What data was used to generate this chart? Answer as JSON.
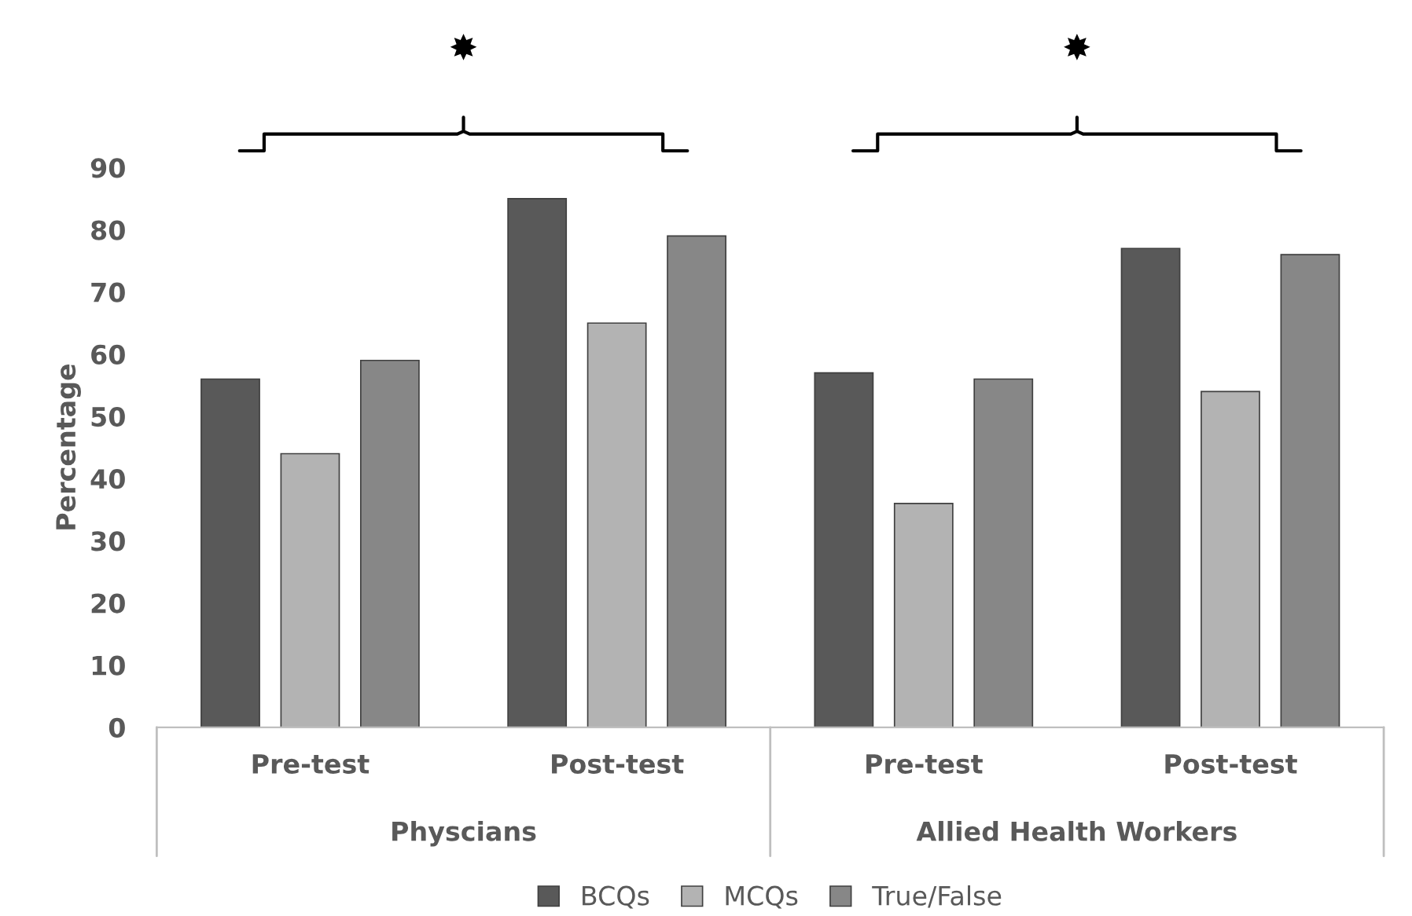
{
  "chart_data": {
    "type": "bar",
    "ylabel": "Percentage",
    "categories": [
      "Pre-test",
      "Post-test",
      "Pre-test",
      "Post-test"
    ],
    "series": [
      {
        "name": "BCQs",
        "color": "#595959",
        "values": [
          56,
          85,
          57,
          77
        ]
      },
      {
        "name": "MCQs",
        "color": "#b3b3b3",
        "values": [
          44,
          65,
          36,
          54
        ]
      },
      {
        "name": "True/False",
        "color": "#878787",
        "values": [
          59,
          79,
          56,
          76
        ]
      }
    ],
    "annotations": [
      "Physcians",
      "Allied Health Workers",
      "✸",
      "✸"
    ],
    "ylim": [
      0,
      90
    ],
    "yticks": [
      0,
      10,
      20,
      30,
      40,
      50,
      60,
      70,
      80,
      90
    ],
    "grid": false,
    "legend": "bottom"
  }
}
